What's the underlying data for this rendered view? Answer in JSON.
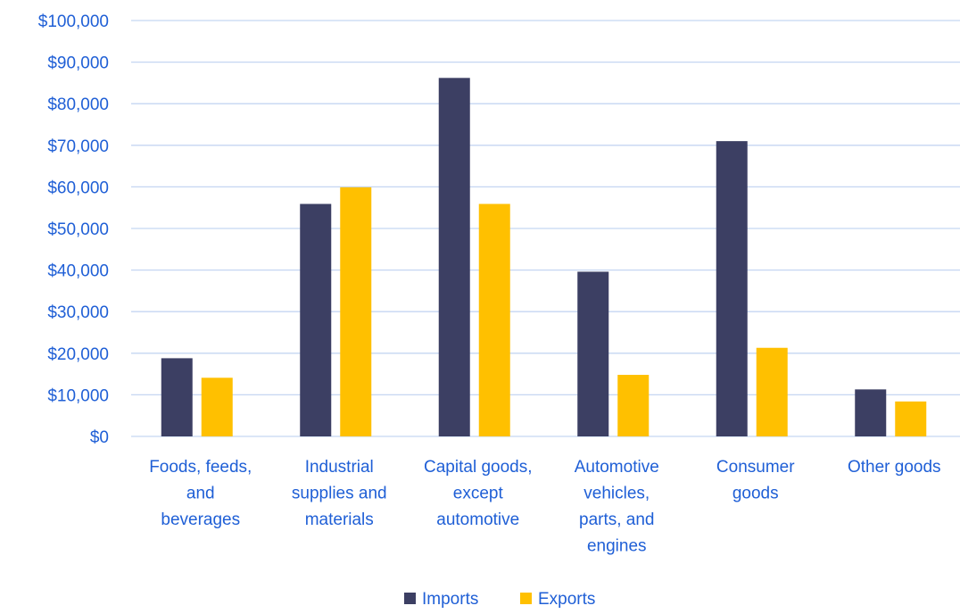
{
  "chart_data": {
    "type": "bar",
    "categories": [
      [
        "Foods, feeds,",
        "and",
        "beverages"
      ],
      [
        "Industrial",
        "supplies and",
        "materials"
      ],
      [
        "Capital goods,",
        "except",
        "automotive"
      ],
      [
        "Automotive",
        "vehicles,",
        "parts, and",
        "engines"
      ],
      [
        "Consumer",
        "goods"
      ],
      [
        "Other goods"
      ]
    ],
    "series": [
      {
        "name": "Imports",
        "color": "#3c3f63",
        "values": [
          18800,
          55900,
          86200,
          39600,
          71000,
          11300
        ]
      },
      {
        "name": "Exports",
        "color": "#ffc000",
        "values": [
          14100,
          59900,
          55900,
          14800,
          21300,
          8400
        ]
      }
    ],
    "yticks": [
      "$0",
      "$10,000",
      "$20,000",
      "$30,000",
      "$40,000",
      "$50,000",
      "$60,000",
      "$70,000",
      "$80,000",
      "$90,000",
      "$100,000"
    ],
    "ylim": [
      0,
      100000
    ],
    "grid": true,
    "legend_position": "bottom",
    "text_color": "#1f5fd6",
    "grid_color": "#c5d6f2"
  }
}
